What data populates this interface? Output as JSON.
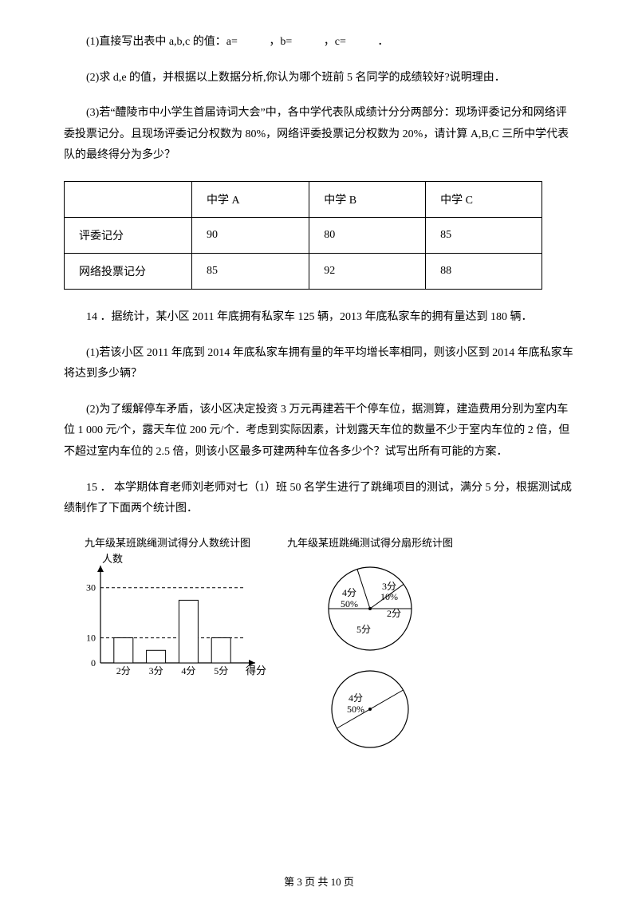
{
  "q1": "(1)直接写出表中 a,b,c 的值：a=",
  "q1b": "，b=",
  "q1c": "，c=",
  "q1end": "．",
  "q2": "(2)求 d,e 的值，并根据以上数据分析,你认为哪个班前 5 名同学的成绩较好?说明理由．",
  "q3": "(3)若“醴陵市中小学生首届诗词大会”中，各中学代表队成绩计分分两部分：现场评委记分和网络评委投票记分。且现场评委记分权数为 80%，网络评委投票记分权数为 20%，请计算 A,B,C 三所中学代表队的最终得分为多少？",
  "table": {
    "headers": [
      "",
      "中学 A",
      "中学 B",
      "中学 C"
    ],
    "rows": [
      [
        "评委记分",
        "90",
        "80",
        "85"
      ],
      [
        "网络投票记分",
        "85",
        "92",
        "88"
      ]
    ]
  },
  "p14": "14 ．据统计，某小区 2011 年底拥有私家车 125 辆，2013 年底私家车的拥有量达到 180 辆．",
  "p14_1": "(1)若该小区 2011 年底到 2014 年底私家车拥有量的年平均增长率相同，则该小区到 2014 年底私家车将达到多少辆？",
  "p14_2": "(2)为了缓解停车矛盾，该小区决定投资 3 万元再建若干个停车位，据测算，建造费用分别为室内车位 1  000 元/个，露天车位 200 元/个．考虑到实际因素，计划露天车位的数量不少于室内车位的 2 倍，但不超过室内车位的 2.5 倍，则该小区最多可建两种车位各多少个？试写出所有可能的方案．",
  "p15": "15 ． 本学期体育老师刘老师对七（1）班 50 名学生进行了跳绳项目的测试，满分 5 分，根据测试成绩制作了下面两个统计图．",
  "barChart": {
    "title": "九年级某班跳绳测试得分人数统计图",
    "ylabel": "人数",
    "xlabel": "得分",
    "categories": [
      "2分",
      "3分",
      "4分",
      "5分"
    ],
    "values": [
      10,
      5,
      25,
      10
    ],
    "dashed_lines": [
      10,
      30
    ],
    "ylim": [
      0,
      35
    ],
    "colors": {
      "bar": "#ffffff",
      "stroke": "#000000",
      "dash": "#000000"
    }
  },
  "pieChart": {
    "title": "九年级某班跳绳测试得分扇形统计图",
    "slices": [
      {
        "label": "4分",
        "sub": "50%",
        "start": 90,
        "end": 270
      },
      {
        "label": "3分",
        "sub": "10%",
        "start": 54,
        "end": 90
      },
      {
        "label": "2分",
        "sub": "",
        "start": 342,
        "end": 54
      },
      {
        "label": "5分",
        "sub": "",
        "start": 270,
        "end": 342
      }
    ],
    "stroke": "#000000"
  },
  "footer": "第 3 页 共 10 页"
}
